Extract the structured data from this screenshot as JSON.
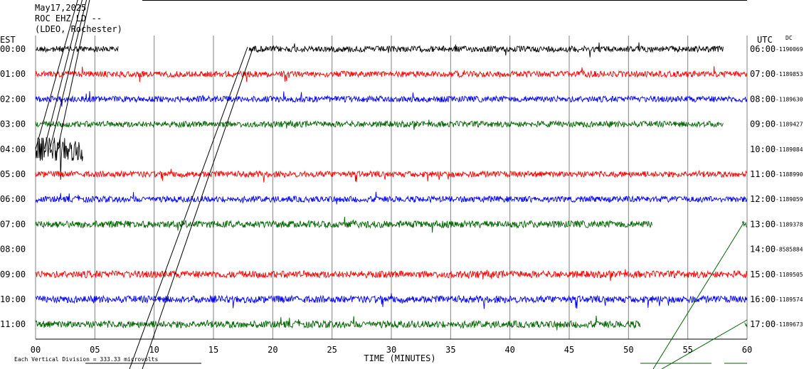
{
  "header": {
    "date": "May17,2025",
    "station": "ROC EHZ LD --",
    "network": "(LDEO, Rochester)"
  },
  "left_axis_label": "EST",
  "right_axis_label": "UTC",
  "dc_label": "DC",
  "footer_note": "Each Vertical Division =  333.33 microvolts",
  "colors": {
    "black": "#000000",
    "red": "#ff0000",
    "blue": "#0000ff",
    "green": "#006400",
    "grid": "#808080"
  },
  "chart_data": {
    "type": "line",
    "title": "May17,2025",
    "xlabel": "TIME (MINUTES)",
    "ylabel": "",
    "xlim": [
      0,
      60
    ],
    "x_ticks": [
      0,
      5,
      10,
      15,
      20,
      25,
      30,
      35,
      40,
      45,
      50,
      55,
      60
    ],
    "x_tick_labels": [
      "00",
      "05",
      "10",
      "15",
      "20",
      "25",
      "30",
      "35",
      "40",
      "45",
      "50",
      "55",
      "60"
    ],
    "grid": true,
    "series": [
      {
        "est": "00:00",
        "utc": "06:00",
        "dc": "-1190069",
        "color": "black",
        "segments": [
          [
            0,
            7
          ],
          [
            18,
            58
          ]
        ],
        "amplitude": 0.3
      },
      {
        "est": "01:00",
        "utc": "07:00",
        "dc": "-1189853",
        "color": "red",
        "segments": [
          [
            0,
            60
          ]
        ],
        "amplitude": 0.3
      },
      {
        "est": "02:00",
        "utc": "08:00",
        "dc": "-1189630",
        "color": "blue",
        "segments": [
          [
            0,
            60
          ]
        ],
        "amplitude": 0.3
      },
      {
        "est": "03:00",
        "utc": "09:00",
        "dc": "-1189427",
        "color": "green",
        "segments": [
          [
            0,
            58
          ]
        ],
        "amplitude": 0.3
      },
      {
        "est": "04:00",
        "utc": "10:00",
        "dc": "-1189084",
        "color": "black",
        "segments": [
          [
            0,
            4
          ]
        ],
        "amplitude": 1.2
      },
      {
        "est": "05:00",
        "utc": "11:00",
        "dc": "-1188990",
        "color": "red",
        "segments": [
          [
            0,
            60
          ]
        ],
        "amplitude": 0.3
      },
      {
        "est": "06:00",
        "utc": "12:00",
        "dc": "-1189059",
        "color": "blue",
        "segments": [
          [
            0,
            60
          ]
        ],
        "amplitude": 0.3
      },
      {
        "est": "07:00",
        "utc": "13:00",
        "dc": "-1189378",
        "color": "green",
        "segments": [
          [
            0,
            52
          ],
          [
            59.6,
            60
          ]
        ],
        "amplitude": 0.35
      },
      {
        "est": "08:00",
        "utc": "14:00",
        "dc": "-8585884",
        "color": "black",
        "segments": [],
        "amplitude": 0
      },
      {
        "est": "09:00",
        "utc": "15:00",
        "dc": "-1189505",
        "color": "red",
        "segments": [
          [
            0,
            60
          ]
        ],
        "amplitude": 0.35
      },
      {
        "est": "10:00",
        "utc": "16:00",
        "dc": "-1189574",
        "color": "blue",
        "segments": [
          [
            0,
            60
          ]
        ],
        "amplitude": 0.35
      },
      {
        "est": "11:00",
        "utc": "17:00",
        "dc": "-1189673",
        "color": "green",
        "segments": [
          [
            0,
            51
          ],
          [
            59.8,
            60
          ]
        ],
        "amplitude": 0.35
      }
    ]
  }
}
